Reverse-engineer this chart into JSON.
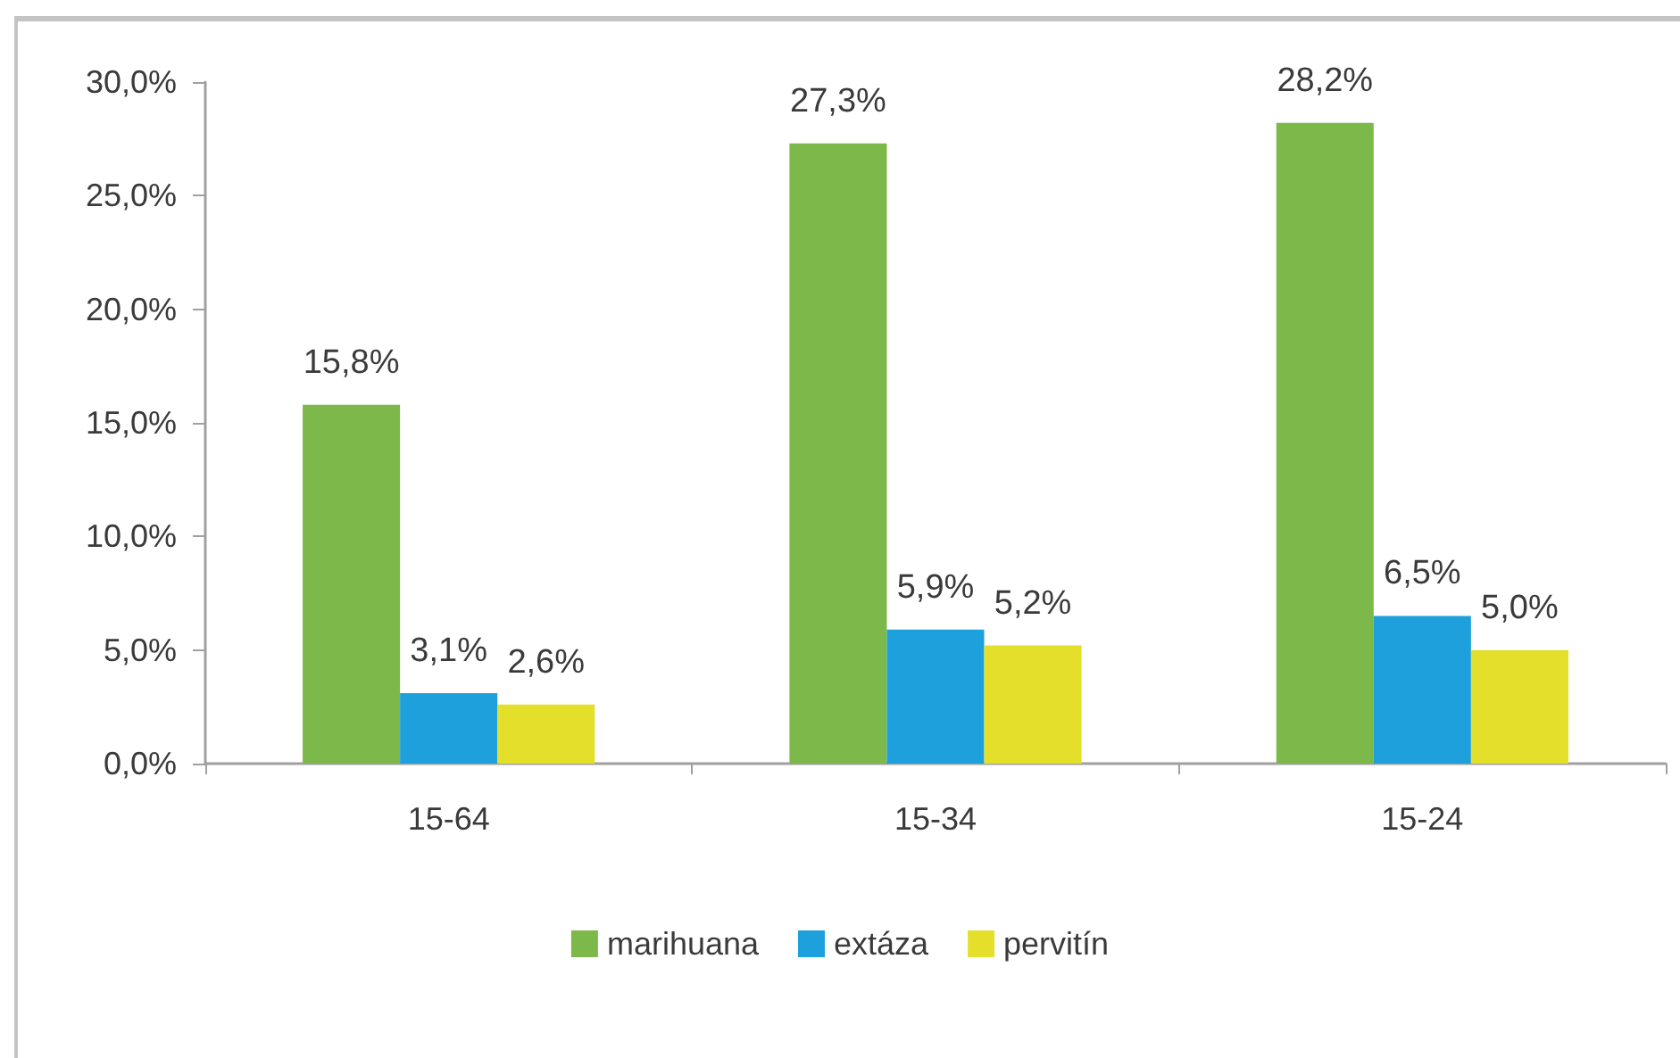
{
  "chart_data": {
    "type": "bar",
    "categories": [
      "15-64",
      "15-34",
      "15-24"
    ],
    "series": [
      {
        "name": "marihuana",
        "color": "#7cb84a",
        "values": [
          15.8,
          27.3,
          28.2
        ],
        "value_labels": [
          "15,8%",
          "27,3%",
          "28,2%"
        ]
      },
      {
        "name": "extáza",
        "color": "#1ea0dc",
        "values": [
          3.1,
          5.9,
          6.5
        ],
        "value_labels": [
          "3,1%",
          "5,9%",
          "6,5%"
        ]
      },
      {
        "name": "pervitín",
        "color": "#e4df2a",
        "values": [
          2.6,
          5.2,
          5.0
        ],
        "value_labels": [
          "2,6%",
          "5,2%",
          "5,0%"
        ]
      }
    ],
    "ylim": [
      0,
      30
    ],
    "yticks": [
      {
        "value": 0,
        "label": "0,0%"
      },
      {
        "value": 5,
        "label": "5,0%"
      },
      {
        "value": 10,
        "label": "10,0%"
      },
      {
        "value": 15,
        "label": "15,0%"
      },
      {
        "value": 20,
        "label": "20,0%"
      },
      {
        "value": 25,
        "label": "25,0%"
      },
      {
        "value": 30,
        "label": "30,0%"
      }
    ],
    "grid": false,
    "legend": "bottom"
  }
}
